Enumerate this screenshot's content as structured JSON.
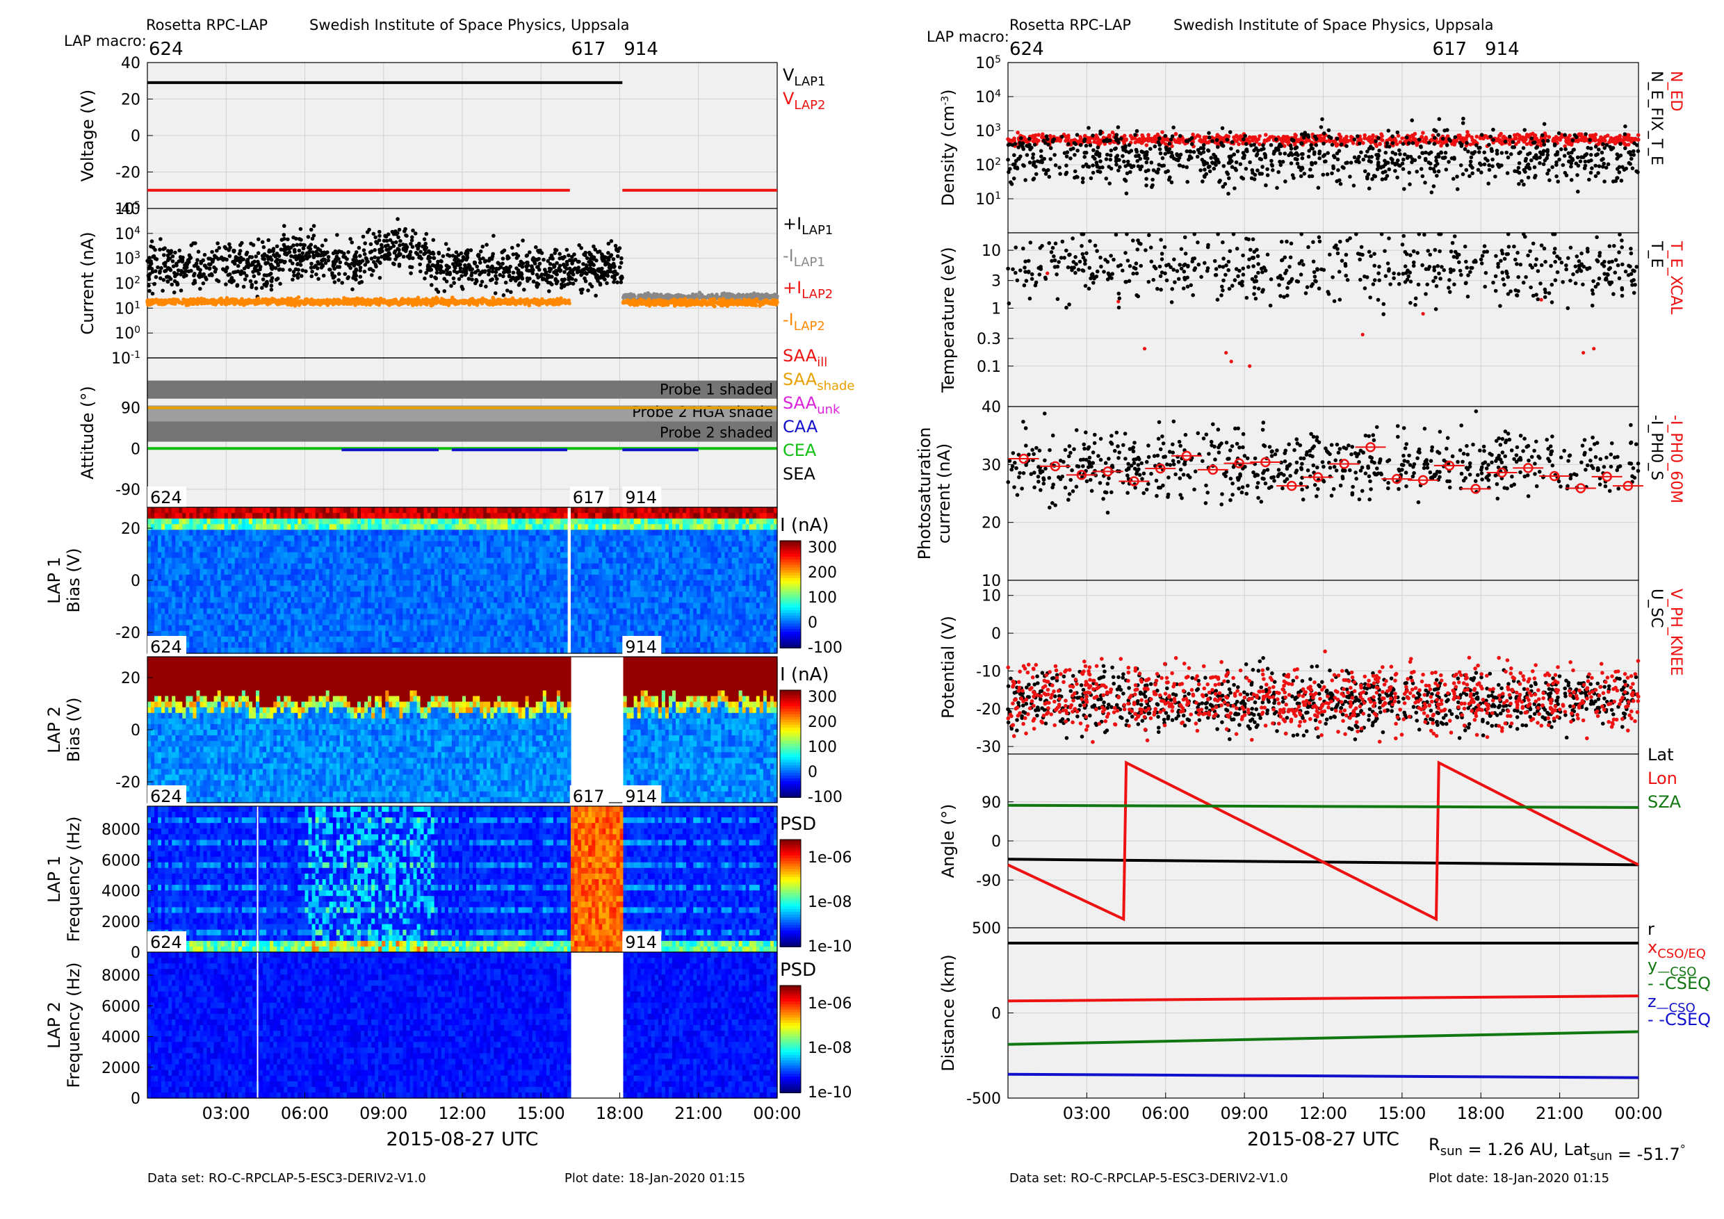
{
  "header": {
    "left_title": "Rosetta RPC-LAP",
    "left_institute": "Swedish Institute of Space Physics, Uppsala",
    "right_title": "Rosetta RPC-LAP",
    "right_institute": "Swedish Institute of Space Physics, Uppsala",
    "macro_label": "LAP macro:",
    "macros": [
      "624",
      "617",
      "914"
    ]
  },
  "footer": {
    "dataset": "Data set: RO-C-RPCLAP-5-ESC3-DERIV2-V1.0",
    "plot_date": "Plot date: 18-Jan-2020 01:15",
    "rsun_text": "R<sub>sun</sub> = 1.26 AU, Lat<sub>sun</sub> = -51.7<sup>°</sup>"
  },
  "xaxis": {
    "ticks": [
      "03:00",
      "06:00",
      "09:00",
      "12:00",
      "15:00",
      "18:00",
      "21:00",
      "00:00"
    ],
    "tick_hours": [
      3,
      6,
      9,
      12,
      15,
      18,
      21,
      24
    ],
    "range_hours": [
      0,
      24
    ],
    "label": "2015-08-27 UTC",
    "macro_change_hours": [
      16.1,
      18.1
    ]
  },
  "colors": {
    "black": "#000000",
    "red": "#ee1111",
    "orange": "#ff8800",
    "gray": "#888888",
    "green": "#10a010",
    "dark_green": "#117711",
    "blue": "#1010cc",
    "magenta": "#dd22dd",
    "saa_shade_orange": "#e8a000",
    "panel_bg": "#f0f0f0",
    "grid": "#d0d0d0"
  },
  "chart_data": [
    {
      "id": "voltage",
      "type": "line",
      "ylabel": "Voltage (V)",
      "ylim": [
        -40,
        40
      ],
      "yticks": [
        -40,
        -20,
        0,
        20,
        40
      ],
      "legend": [
        {
          "text": "V",
          "sub": "LAP1",
          "color": "#000000"
        },
        {
          "text": "V",
          "sub": "LAP2",
          "color": "#ee1111"
        }
      ],
      "series": [
        {
          "name": "VLAP1",
          "color": "#000000",
          "segments": [
            [
              [
                0,
                29
              ],
              [
                18.1,
                29
              ]
            ]
          ]
        },
        {
          "name": "VLAP2",
          "color": "#ee1111",
          "segments": [
            [
              [
                0,
                -30
              ],
              [
                16.1,
                -30
              ]
            ],
            [
              [
                18.1,
                -30
              ],
              [
                24,
                -30
              ]
            ]
          ]
        }
      ]
    },
    {
      "id": "current",
      "type": "scatter",
      "yscale": "log",
      "ylabel": "Current (nA)",
      "ylim": [
        0.1,
        100000
      ],
      "yticks": [
        "10<tspan dy='-8' font-size='14'>-1</tspan>",
        "10<tspan dy='-8' font-size='14'>0</tspan>",
        "10<tspan dy='-8' font-size='14'>1</tspan>",
        "10<tspan dy='-8' font-size='14'>2</tspan>",
        "10<tspan dy='-8' font-size='14'>3</tspan>",
        "10<tspan dy='-8' font-size='14'>4</tspan>",
        "10<tspan dy='-8' font-size='14'>5</tspan>"
      ],
      "legend": [
        {
          "text": "+I",
          "sub": "LAP1",
          "color": "#000000"
        },
        {
          "text": "-I",
          "sub": "LAP1",
          "color": "#888888"
        },
        {
          "text": "+I",
          "sub": "LAP2",
          "color": "#ee1111"
        },
        {
          "text": "-I",
          "sub": "LAP2",
          "color": "#ff8800"
        }
      ],
      "series": [
        {
          "name": "+ILAP1",
          "color": "#000000",
          "x_range": [
            0,
            18.1
          ],
          "y_center": 450,
          "y_spread_dex": 0.45,
          "bumps": [
            {
              "x": 6,
              "y": 1500
            },
            {
              "x": 9.5,
              "y": 3000
            }
          ]
        },
        {
          "name": "-ILAP1",
          "color": "#888888",
          "x_range": [
            18.1,
            24
          ],
          "y_center": 28,
          "y_spread_dex": 0.06
        },
        {
          "name": "-ILAP2",
          "color": "#ff8800",
          "x_range": [
            0,
            16.1
          ],
          "y_center": 18,
          "y_spread_dex": 0.06
        },
        {
          "name": "-ILAP2",
          "color": "#ff8800",
          "x_range": [
            18.1,
            24
          ],
          "y_center": 17,
          "y_spread_dex": 0.06
        }
      ]
    },
    {
      "id": "attitude",
      "type": "line",
      "ylabel": "Attitude (°)",
      "ylim": [
        -130,
        200
      ],
      "yticks": [
        -90,
        0,
        90
      ],
      "bands": [
        {
          "label": "Probe 1 shaded",
          "y_range": [
            110,
            150
          ]
        },
        {
          "label": "Probe 2 HGA shade",
          "y_range": [
            60,
            95
          ]
        },
        {
          "label": "Probe 2 shaded",
          "y_range": [
            15,
            60
          ]
        }
      ],
      "legend": [
        {
          "text": "SAA",
          "sub": "ill",
          "color": "#ee1111"
        },
        {
          "text": "SAA",
          "sub": "shade",
          "color": "#e8a000"
        },
        {
          "text": "SAA",
          "sub": "unk",
          "color": "#dd22dd"
        },
        {
          "text": "CAA",
          "sub": "",
          "color": "#1010cc"
        },
        {
          "text": "CEA",
          "sub": "",
          "color": "#10c010"
        },
        {
          "text": "SEA",
          "sub": "",
          "color": "#000000"
        }
      ],
      "series": [
        {
          "name": "SAA",
          "color": "#e8a000",
          "segments": [
            [
              [
                0,
                90
              ],
              [
                24,
                90
              ]
            ]
          ]
        },
        {
          "name": "CEA",
          "color": "#10c010",
          "segments": [
            [
              [
                0,
                0
              ],
              [
                24,
                0
              ]
            ]
          ]
        },
        {
          "name": "CAA",
          "color": "#1010cc",
          "segments": [
            [
              [
                7.4,
                -3
              ],
              [
                11.1,
                -3
              ]
            ],
            [
              [
                11.6,
                -3
              ],
              [
                16,
                -3
              ]
            ],
            [
              [
                18.1,
                -3
              ],
              [
                21,
                -3
              ]
            ]
          ]
        }
      ]
    },
    {
      "id": "lap1_bias",
      "type": "heatmap",
      "ylabel": "LAP 1\nBias (V)",
      "ylim": [
        -28,
        28
      ],
      "yticks": [
        -20,
        0,
        20
      ],
      "colorbar_label": "I (nA)",
      "colorbar_ticks": [
        "300",
        "200",
        "100",
        "0",
        "-100"
      ],
      "macros": [
        "624",
        "617",
        "914"
      ],
      "gaps_hours": [
        [
          16.05,
          16.15
        ]
      ]
    },
    {
      "id": "lap2_bias",
      "type": "heatmap",
      "ylabel": "LAP 2\nBias (V)",
      "ylim": [
        -28,
        28
      ],
      "yticks": [
        -20,
        0,
        20
      ],
      "colorbar_label": "I (nA)",
      "colorbar_ticks": [
        "300",
        "200",
        "100",
        "0",
        "-100"
      ],
      "macros": [
        "624",
        "914"
      ],
      "gaps_hours": [
        [
          16.1,
          18.1
        ]
      ]
    },
    {
      "id": "lap1_freq",
      "type": "heatmap",
      "ylabel": "LAP 1\nFrequency (Hz)",
      "ylim": [
        0,
        9500
      ],
      "yticks": [
        0,
        2000,
        4000,
        6000,
        8000
      ],
      "colorbar_label": "PSD",
      "colorbar_ticks": [
        "1e-06",
        "1e-08",
        "1e-10"
      ],
      "macros": [
        "624",
        "617",
        "914"
      ],
      "gaps_hours": [
        [
          16.1,
          18.1
        ]
      ]
    },
    {
      "id": "lap2_freq",
      "type": "heatmap",
      "ylabel": "LAP 2\nFrequency (Hz)",
      "ylim": [
        0,
        9500
      ],
      "yticks": [
        0,
        2000,
        4000,
        6000,
        8000
      ],
      "colorbar_label": "PSD",
      "colorbar_ticks": [
        "1e-06",
        "1e-08",
        "1e-10"
      ],
      "macros": [
        "624",
        "914"
      ],
      "gaps_hours": [
        [
          16.1,
          18.1
        ]
      ]
    },
    {
      "id": "density",
      "type": "scatter",
      "yscale": "log",
      "ylabel": "Density (cm<tspan dy='-8' font-size='14'>-3</tspan><tspan dy='8'>)</tspan>",
      "ylim": [
        1,
        100000
      ],
      "yticks": [
        "10<tspan dy='-8' font-size='14'>1</tspan>",
        "10<tspan dy='-8' font-size='14'>2</tspan>",
        "10<tspan dy='-8' font-size='14'>3</tspan>",
        "10<tspan dy='-8' font-size='14'>4</tspan>",
        "10<tspan dy='-8' font-size='14'>5</tspan>"
      ],
      "ytick_values": [
        10,
        100,
        1000,
        10000,
        100000
      ],
      "labels_right": [
        {
          "text": "N_ED",
          "color": "#ee1111"
        },
        {
          "text": "N_E_FIX_T_E",
          "color": "#000000"
        }
      ],
      "series": [
        {
          "name": "N_ED",
          "color": "#ee1111",
          "x_range": [
            0,
            24
          ],
          "y_center": 550,
          "y_spread_dex": 0.08
        },
        {
          "name": "N_E_FIX_T_E",
          "color": "#000000",
          "x_range": [
            0,
            24
          ],
          "y_center": 160,
          "y_spread_dex": 0.4
        }
      ]
    },
    {
      "id": "temperature",
      "type": "scatter",
      "yscale": "log",
      "ylabel": "Temperature (eV)",
      "ylim": [
        0.02,
        20
      ],
      "yticks": [
        "0.1",
        "0.3",
        "1",
        "3",
        "10"
      ],
      "ytick_values": [
        0.1,
        0.3,
        1,
        3,
        10
      ],
      "labels_right": [
        {
          "text": "T_E_XCAL",
          "color": "#ee1111"
        },
        {
          "text": "T_E",
          "color": "#000000"
        }
      ],
      "series": [
        {
          "name": "T_E",
          "color": "#000000",
          "x_range": [
            0,
            24
          ],
          "y_center": 5,
          "y_spread_dex": 0.3
        },
        {
          "name": "T_E_XCAL",
          "color": "#ee1111",
          "points": [
            [
              1.5,
              4
            ],
            [
              4.2,
              1.3
            ],
            [
              5.2,
              0.2
            ],
            [
              8.3,
              0.17
            ],
            [
              8.5,
              0.12
            ],
            [
              9.2,
              0.1
            ],
            [
              13.5,
              0.35
            ],
            [
              15.8,
              0.8
            ],
            [
              20.3,
              1.4
            ],
            [
              21.9,
              0.17
            ],
            [
              22.3,
              0.2
            ]
          ]
        }
      ]
    },
    {
      "id": "photocurrent",
      "type": "scatter",
      "ylabel": "Photosaturation\ncurrent (nA)",
      "ylim": [
        10,
        40
      ],
      "yticks": [
        10,
        20,
        30,
        40
      ],
      "labels_right": [
        {
          "text": "-I_PH0_60M",
          "color": "#ee1111"
        },
        {
          "text": "-I_PH0_S",
          "color": "#000000"
        }
      ],
      "series": [
        {
          "name": "-I_PH0_S",
          "color": "#000000",
          "x_range": [
            0,
            24
          ],
          "y_center": 30,
          "y_spread": 3
        },
        {
          "name": "-I_PH0_60M",
          "color": "#ee1111",
          "marker": "circle-errorbar",
          "points": [
            [
              0.6,
              31
            ],
            [
              1.8,
              29.7
            ],
            [
              2.8,
              28.2
            ],
            [
              3.8,
              28.8
            ],
            [
              4.8,
              27.1
            ],
            [
              5.8,
              29.3
            ],
            [
              6.8,
              31.5
            ],
            [
              7.8,
              29.1
            ],
            [
              8.8,
              30.2
            ],
            [
              9.8,
              30.4
            ],
            [
              10.8,
              26.3
            ],
            [
              11.8,
              27.8
            ],
            [
              12.8,
              30.1
            ],
            [
              13.8,
              33
            ],
            [
              14.8,
              27.5
            ],
            [
              15.8,
              27.3
            ],
            [
              16.8,
              29.8
            ],
            [
              17.8,
              25.8
            ],
            [
              18.8,
              28.6
            ],
            [
              19.8,
              29.4
            ],
            [
              20.8,
              28
            ],
            [
              21.8,
              25.9
            ],
            [
              22.8,
              27.9
            ],
            [
              23.6,
              26.3
            ]
          ]
        }
      ]
    },
    {
      "id": "potential",
      "type": "scatter",
      "ylabel": "Potential (V)",
      "ylim": [
        -32,
        14
      ],
      "yticks": [
        -30,
        -20,
        -10,
        0,
        10
      ],
      "labels_right": [
        {
          "text": "V_PH_KNEE",
          "color": "#ee1111"
        },
        {
          "text": "U_SC",
          "color": "#000000"
        }
      ],
      "series": [
        {
          "name": "U_SC",
          "color": "#000000",
          "x_range": [
            0,
            24
          ],
          "y_center": -18,
          "y_spread": 4
        },
        {
          "name": "V_PH_KNEE",
          "color": "#ee1111",
          "x_range": [
            0,
            24
          ],
          "y_center": -17,
          "y_spread": 4.5
        }
      ]
    },
    {
      "id": "angle",
      "type": "line",
      "ylabel": "Angle (°)",
      "ylim": [
        -200,
        200
      ],
      "yticks": [
        -90,
        0,
        90
      ],
      "legend": [
        {
          "text": "Lat",
          "sub": "",
          "color": "#000000"
        },
        {
          "text": "Lon",
          "sub": "",
          "color": "#ee1111"
        },
        {
          "text": "SZA",
          "sub": "",
          "color": "#117711"
        }
      ],
      "series": [
        {
          "name": "Lat",
          "color": "#000000",
          "segments": [
            [
              [
                0,
                -42
              ],
              [
                24,
                -55
              ]
            ]
          ]
        },
        {
          "name": "Lon",
          "color": "#ee1111",
          "segments": [
            [
              [
                0,
                -55
              ],
              [
                4.4,
                -180
              ],
              [
                4.5,
                180
              ],
              [
                16.3,
                -180
              ],
              [
                16.4,
                180
              ],
              [
                24,
                -55
              ]
            ]
          ]
        },
        {
          "name": "SZA",
          "color": "#117711",
          "segments": [
            [
              [
                0,
                82
              ],
              [
                24,
                77
              ]
            ]
          ]
        }
      ]
    },
    {
      "id": "distance",
      "type": "line",
      "ylabel": "Distance (km)",
      "ylim": [
        -500,
        500
      ],
      "yticks": [
        -500,
        0,
        500
      ],
      "legend": [
        {
          "text": "r",
          "sub": "",
          "color": "#000000"
        },
        {
          "text": "x",
          "sub": "CSO/EQ",
          "color": "#ee1111"
        },
        {
          "text": "y",
          "sub": "—CSO",
          "color": "#117711"
        },
        {
          "text": "- -CSEQ",
          "sub": "",
          "color": "#117711"
        },
        {
          "text": "z",
          "sub": "—CSO",
          "color": "#1010cc"
        },
        {
          "text": "- -CSEQ",
          "sub": "",
          "color": "#1010cc"
        }
      ],
      "series": [
        {
          "name": "r",
          "color": "#000000",
          "segments": [
            [
              [
                0,
                410
              ],
              [
                24,
                410
              ]
            ]
          ]
        },
        {
          "name": "x",
          "color": "#ee1111",
          "segments": [
            [
              [
                0,
                70
              ],
              [
                24,
                100
              ]
            ]
          ]
        },
        {
          "name": "y",
          "color": "#117711",
          "segments": [
            [
              [
                0,
                -185
              ],
              [
                24,
                -110
              ]
            ]
          ]
        },
        {
          "name": "z",
          "color": "#1010cc",
          "segments": [
            [
              [
                0,
                -360
              ],
              [
                24,
                -380
              ]
            ]
          ]
        }
      ]
    }
  ]
}
